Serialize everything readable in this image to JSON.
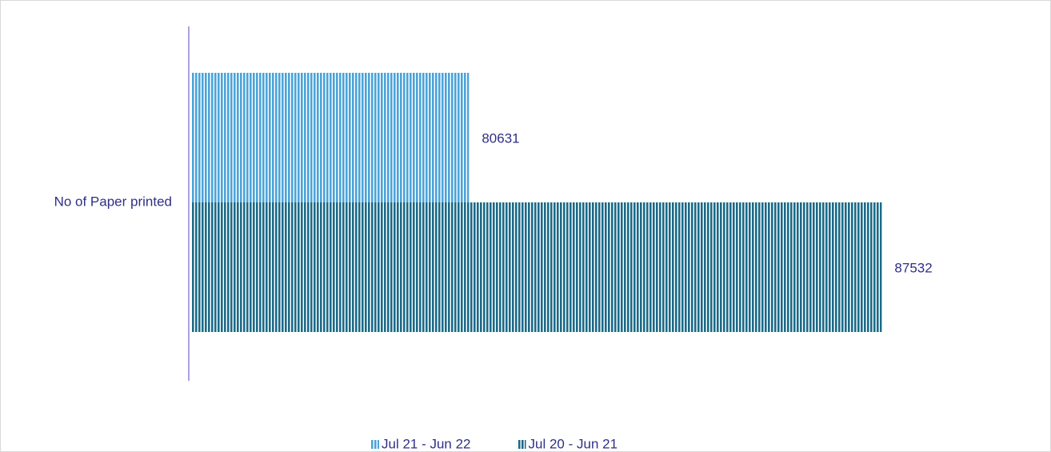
{
  "chart_data": {
    "type": "hbar",
    "categories": [
      "No of Paper printed"
    ],
    "series": [
      {
        "name": "Jul 21 - Jun 22",
        "color": "#4ba3d9",
        "values": [
          80631
        ]
      },
      {
        "name": "Jul 20 - Jun 21",
        "color": "#1b6a88",
        "values": [
          87532
        ]
      }
    ],
    "xlim": [
      76000,
      90000
    ],
    "legend": "bottom"
  }
}
